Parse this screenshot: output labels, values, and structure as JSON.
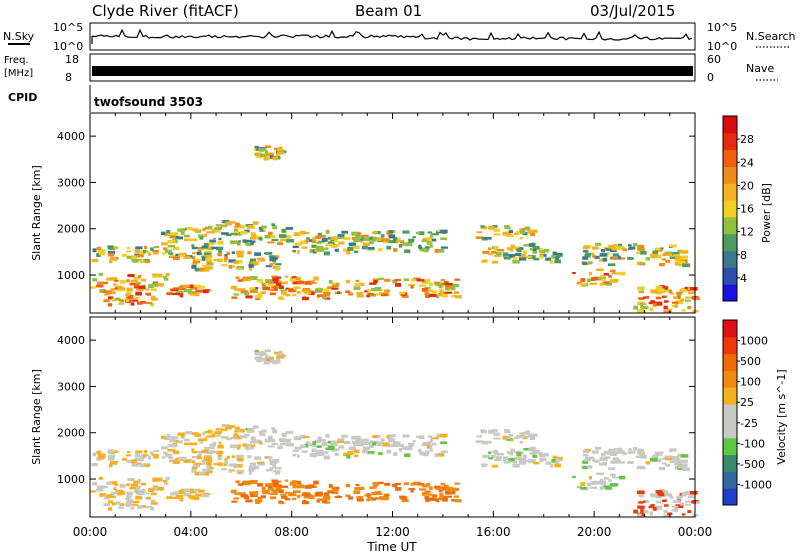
{
  "header": {
    "station": "Clyde River (fitACF)",
    "beam": "Beam 01",
    "date": "03/Jul/2015"
  },
  "status_panels": {
    "nsky_label": "N.Sky",
    "nsky_top": "10^5",
    "nsky_bottom": "10^0",
    "nsearch_label": "N.Search",
    "nsearch_top": "10^5",
    "nsearch_bottom": "10^0",
    "freq_label_1": "Freq.",
    "freq_label_2": "[MHz]",
    "freq_top": "18",
    "freq_bottom": "8",
    "nave_label": "Nave",
    "nave_top": "60",
    "nave_bottom": "0",
    "cpid_label": "CPID",
    "cpid_value": "twofsound 3503"
  },
  "chart_data": [
    {
      "type": "heatmap",
      "title": "",
      "ylabel": "Slant Range [km]",
      "xlabel": "",
      "x_ticks": [
        "00:00",
        "04:00",
        "08:00",
        "12:00",
        "16:00",
        "20:00",
        "00:00"
      ],
      "y_ticks": [
        "1000",
        "2000",
        "3000",
        "4000"
      ],
      "ylim": [
        180,
        4500
      ],
      "xlim_hours": [
        0,
        24
      ],
      "colorbar": {
        "label": "Power [dB]",
        "ticks": [
          "4",
          "8",
          "12",
          "16",
          "20",
          "24",
          "28"
        ],
        "colors": [
          "#1a10e0",
          "#2a4fb0",
          "#3a7a8a",
          "#4f9a5f",
          "#8fc040",
          "#f0d020",
          "#f6b020",
          "#f08a18",
          "#f06010",
          "#e62a10",
          "#d80c0c"
        ]
      }
    },
    {
      "type": "heatmap",
      "title": "",
      "ylabel": "Slant Range [km]",
      "xlabel": "Time UT",
      "x_ticks": [
        "00:00",
        "04:00",
        "08:00",
        "12:00",
        "16:00",
        "20:00",
        "00:00"
      ],
      "y_ticks": [
        "1000",
        "2000",
        "3000",
        "4000"
      ],
      "ylim": [
        180,
        4500
      ],
      "xlim_hours": [
        0,
        24
      ],
      "colorbar": {
        "label": "Velocity [m s^-1]",
        "ticks": [
          "1000",
          "500",
          "100",
          "25",
          "-25",
          "-100",
          "-500",
          "-1000"
        ],
        "colors": [
          "#1f3fc8",
          "#2e6aa0",
          "#3a8a6a",
          "#5cc840",
          "#c8c8c4",
          "#c8c8c4",
          "#f5b020",
          "#f08a10",
          "#f06a08",
          "#ee3a08",
          "#e01010"
        ]
      }
    }
  ],
  "scatter_bands": [
    {
      "t0": 0.0,
      "t1": 2.6,
      "r0": 1300,
      "r1": 1650
    },
    {
      "t0": 0.0,
      "t1": 3.0,
      "r0": 700,
      "r1": 1050
    },
    {
      "t0": 0.5,
      "t1": 2.5,
      "r0": 380,
      "r1": 700
    },
    {
      "t0": 2.8,
      "t1": 5.2,
      "r0": 1400,
      "r1": 2100
    },
    {
      "t0": 4.0,
      "t1": 7.5,
      "r0": 1150,
      "r1": 1550
    },
    {
      "t0": 5.0,
      "t1": 7.8,
      "r0": 1700,
      "r1": 2200
    },
    {
      "t0": 5.5,
      "t1": 9.5,
      "r0": 500,
      "r1": 1000
    },
    {
      "t0": 8.0,
      "t1": 11.0,
      "r0": 1500,
      "r1": 2000
    },
    {
      "t0": 9.5,
      "t1": 14.5,
      "r0": 560,
      "r1": 950
    },
    {
      "t0": 11.0,
      "t1": 14.0,
      "r0": 1550,
      "r1": 2000
    },
    {
      "t0": 15.5,
      "t1": 18.5,
      "r0": 1300,
      "r1": 1700
    },
    {
      "t0": 15.3,
      "t1": 17.5,
      "r0": 1800,
      "r1": 2100
    },
    {
      "t0": 19.5,
      "t1": 23.5,
      "r0": 1250,
      "r1": 1700
    },
    {
      "t0": 19.0,
      "t1": 21.0,
      "r0": 820,
      "r1": 1150
    },
    {
      "t0": 21.5,
      "t1": 24.0,
      "r0": 220,
      "r1": 800
    },
    {
      "t0": 6.5,
      "t1": 7.5,
      "r0": 3500,
      "r1": 3800
    },
    {
      "t0": 3.0,
      "t1": 4.5,
      "r0": 600,
      "r1": 800
    }
  ]
}
